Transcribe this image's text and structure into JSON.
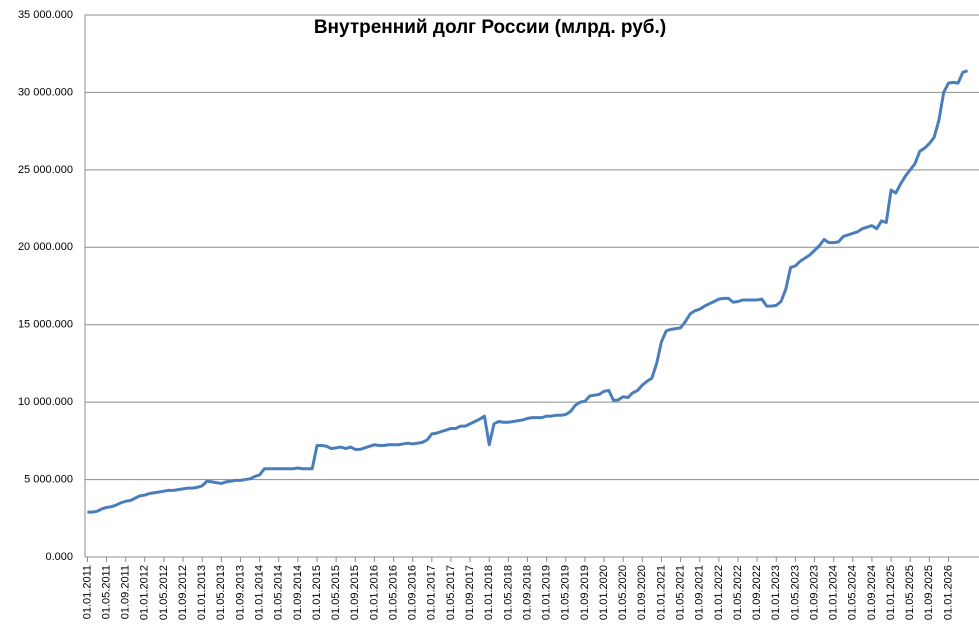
{
  "chart_data": {
    "type": "line",
    "title": "Внутренний  долг России (млрд. руб.)",
    "categories": [
      "01.01.2011",
      null,
      null,
      null,
      "01.05.2011",
      null,
      null,
      null,
      "01.09.2011",
      null,
      null,
      null,
      "01.01.2012",
      null,
      null,
      null,
      "01.05.2012",
      null,
      null,
      null,
      "01.09.2012",
      null,
      null,
      null,
      "01.01.2013",
      null,
      null,
      null,
      "01.05.2013",
      null,
      null,
      null,
      "01.09.2013",
      null,
      null,
      null,
      "01.01.2014",
      null,
      null,
      null,
      "01.05.2014",
      null,
      null,
      null,
      "01.09.2014",
      null,
      null,
      null,
      "01.01.2015",
      null,
      null,
      null,
      "01.05.2015",
      null,
      null,
      null,
      "01.09.2015",
      null,
      null,
      null,
      "01.01.2016",
      null,
      null,
      null,
      "01.05.2016",
      null,
      null,
      null,
      "01.09.2016",
      null,
      null,
      null,
      "01.01.2017",
      null,
      null,
      null,
      "01.05.2017",
      null,
      null,
      null,
      "01.09.2017",
      null,
      null,
      null,
      "01.01.2018",
      null,
      null,
      null,
      "01.05.2018",
      null,
      null,
      null,
      "01.09.2018",
      null,
      null,
      null,
      "01.01.2019",
      null,
      null,
      null,
      "01.05.2019",
      null,
      null,
      null,
      "01.09.2019",
      null,
      null,
      null,
      "01.01.2020",
      null,
      null,
      null,
      "01.05.2020",
      null,
      null,
      null,
      "01.09.2020",
      null,
      null,
      null,
      "01.01.2021",
      null,
      null,
      null,
      "01.05.2021",
      null,
      null,
      null,
      "01.09.2021",
      null,
      null,
      null,
      "01.01.2022",
      null,
      null,
      null,
      "01.05.2022",
      null,
      null,
      null,
      "01.09.2022",
      null,
      null,
      null,
      "01.01.2023",
      null,
      null,
      null,
      "01.05.2023",
      null,
      null,
      null,
      "01.09.2023",
      null,
      null,
      null,
      "01.01.2024",
      null,
      null,
      null,
      "01.05.2024",
      null,
      null,
      null,
      "01.09.2024",
      null,
      null,
      null,
      "01.01.2025",
      null,
      null,
      null,
      "01.05.2025",
      null,
      null,
      null,
      "01.09.2025",
      null,
      null,
      null,
      "01.01.2026",
      null,
      null,
      null,
      null
    ],
    "values": [
      2900,
      2900,
      2950,
      3100,
      3200,
      3250,
      3350,
      3500,
      3600,
      3650,
      3800,
      3950,
      4000,
      4100,
      4150,
      4200,
      4250,
      4300,
      4300,
      4350,
      4400,
      4450,
      4450,
      4500,
      4600,
      4900,
      4850,
      4800,
      4750,
      4850,
      4900,
      4950,
      4950,
      5000,
      5050,
      5200,
      5300,
      5700,
      5700,
      5700,
      5700,
      5700,
      5700,
      5700,
      5750,
      5700,
      5700,
      5700,
      7200,
      7200,
      7150,
      7000,
      7050,
      7100,
      7000,
      7100,
      6950,
      6950,
      7050,
      7150,
      7250,
      7200,
      7200,
      7250,
      7250,
      7250,
      7300,
      7350,
      7300,
      7350,
      7400,
      7550,
      7950,
      8000,
      8100,
      8200,
      8300,
      8300,
      8450,
      8450,
      8600,
      8750,
      8900,
      9100,
      7250,
      8600,
      8750,
      8700,
      8700,
      8750,
      8800,
      8850,
      8950,
      9000,
      9000,
      9000,
      9100,
      9100,
      9150,
      9150,
      9200,
      9400,
      9800,
      10000,
      10050,
      10400,
      10450,
      10500,
      10700,
      10750,
      10100,
      10150,
      10350,
      10300,
      10600,
      10750,
      11100,
      11350,
      11550,
      12500,
      13900,
      14600,
      14700,
      14750,
      14800,
      15200,
      15700,
      15900,
      16000,
      16200,
      16350,
      16500,
      16650,
      16700,
      16700,
      16450,
      16500,
      16600,
      16600,
      16600,
      16600,
      16650,
      16200,
      16200,
      16250,
      16500,
      17300,
      18700,
      18800,
      19100,
      19300,
      19500,
      19800,
      20100,
      20500,
      20300,
      20300,
      20350,
      20700,
      20800,
      20900,
      21000,
      21200,
      21300,
      21400,
      21200,
      21700,
      21600,
      23700,
      23500,
      24100,
      24600,
      25000,
      25400,
      26200,
      26400,
      26700,
      27100,
      28200,
      30000,
      30600,
      30650,
      30600,
      31300,
      31400
    ],
    "color": "#4a7ebb",
    "ylim": [
      0,
      35000
    ],
    "yticks": [
      {
        "value": 0,
        "label": "0.000"
      },
      {
        "value": 5000,
        "label": "5 000.000"
      },
      {
        "value": 10000,
        "label": "10 000.000"
      },
      {
        "value": 15000,
        "label": "15 000.000"
      },
      {
        "value": 20000,
        "label": "20 000.000"
      },
      {
        "value": 25000,
        "label": "25 000.000"
      },
      {
        "value": 30000,
        "label": "30 000.000"
      },
      {
        "value": 35000,
        "label": "35 000.000"
      }
    ],
    "grid": true
  }
}
